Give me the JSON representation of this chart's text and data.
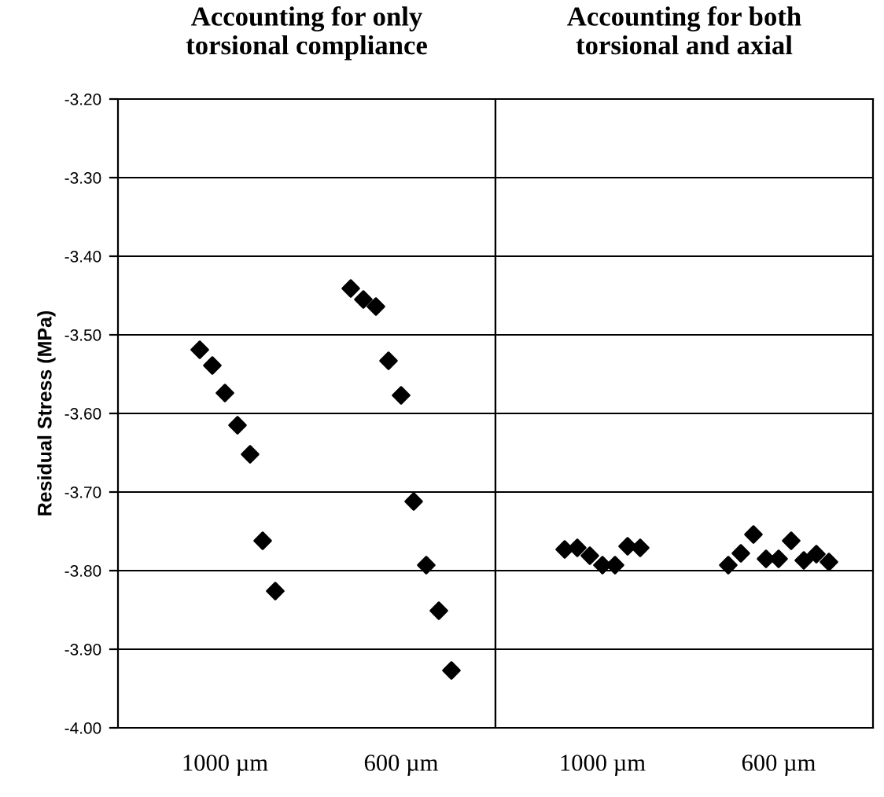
{
  "chart_data": [
    {
      "type": "scatter",
      "title": "Accounting for only\ntorsional compliance",
      "ylabel": "Residual Stress (MPa)",
      "marker": "diamond",
      "grid": "y",
      "categories": [
        null,
        null,
        null,
        null,
        null,
        null,
        null,
        null,
        "1000 µm",
        null,
        null,
        null,
        null,
        null,
        null,
        null,
        null,
        null,
        null,
        null,
        null,
        null,
        "600 µm",
        null,
        null,
        null,
        null,
        null,
        null,
        null,
        null
      ],
      "series": [
        {
          "color": "#000000",
          "values": [
            null,
            null,
            null,
            null,
            null,
            null,
            -3.519,
            -3.539,
            -3.574,
            -3.615,
            -3.652,
            -3.762,
            -3.826,
            null,
            null,
            null,
            null,
            null,
            -3.441,
            -3.455,
            -3.464,
            -3.533,
            -3.577,
            -3.712,
            -3.793,
            -3.851,
            -3.927,
            null,
            null,
            null,
            null
          ]
        }
      ],
      "ylim": [
        -4.0,
        -3.2
      ],
      "yticks": [
        {
          "value": -4.0,
          "label": "-4.00"
        },
        {
          "value": -3.9,
          "label": "-3.90"
        },
        {
          "value": -3.8,
          "label": "-3.80"
        },
        {
          "value": -3.7,
          "label": "-3.70"
        },
        {
          "value": -3.6,
          "label": "-3.60"
        },
        {
          "value": -3.5,
          "label": "-3.50"
        },
        {
          "value": -3.4,
          "label": "-3.40"
        },
        {
          "value": -3.3,
          "label": "-3.30"
        },
        {
          "value": -3.2,
          "label": "-3.20"
        }
      ]
    },
    {
      "type": "scatter",
      "title": "Accounting for both\ntorsional and axial",
      "marker": "diamond",
      "grid": "y",
      "tick_labels": "x",
      "categories": [
        null,
        null,
        null,
        null,
        null,
        null,
        null,
        null,
        "1000 µm",
        null,
        null,
        null,
        null,
        null,
        null,
        null,
        null,
        null,
        null,
        null,
        null,
        null,
        "600 µm",
        null,
        null,
        null,
        null,
        null
      ],
      "series": [
        {
          "color": "#000000",
          "values": [
            null,
            null,
            null,
            null,
            null,
            -3.773,
            -3.771,
            -3.781,
            -3.793,
            -3.793,
            -3.769,
            -3.771,
            null,
            null,
            null,
            null,
            null,
            null,
            -3.793,
            -3.778,
            -3.754,
            -3.785,
            -3.785,
            -3.762,
            -3.787,
            -3.779,
            -3.789,
            null
          ]
        }
      ],
      "ylim": [
        -4.0,
        -3.2
      ],
      "yticks": [
        {
          "value": -4.0,
          "label": null
        },
        {
          "value": -3.9,
          "label": null
        },
        {
          "value": -3.8,
          "label": null
        },
        {
          "value": -3.7,
          "label": null
        },
        {
          "value": -3.6,
          "label": null
        },
        {
          "value": -3.5,
          "label": null
        },
        {
          "value": -3.4,
          "label": null
        },
        {
          "value": -3.3,
          "label": null
        },
        {
          "value": -3.2,
          "label": null
        }
      ]
    }
  ]
}
